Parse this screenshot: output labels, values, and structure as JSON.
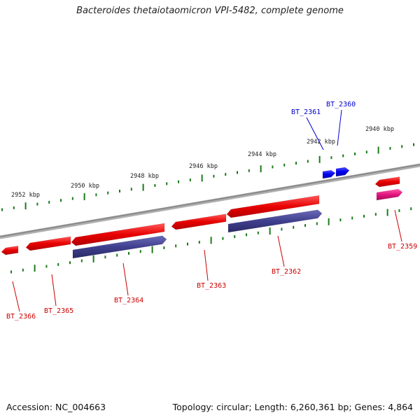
{
  "title": "Bacteroides thetaiotaomicron VPI-5482, complete genome",
  "footer": {
    "accession": "Accession: NC_004663",
    "summary": "Topology: circular; Length: 6,260,361 bp; Genes: 4,864"
  },
  "colors": {
    "backbone": "#8a8a8a",
    "ticks": "#1a7a1a",
    "gene_red": "#ee0000",
    "gene_blue": "#0000ee",
    "gene_purple": "#4a4a9c",
    "gene_pink": "#e2157f",
    "label_red": "#cc0000",
    "label_blue": "#0000cc"
  },
  "scale_labels": [
    "2952 kbp",
    "2950 kbp",
    "2948 kbp",
    "2946 kbp",
    "2944 kbp",
    "2942 kbp",
    "2940 kbp"
  ],
  "gene_labels": [
    {
      "name": "BT_2366",
      "color": "red"
    },
    {
      "name": "BT_2365",
      "color": "red"
    },
    {
      "name": "BT_2364",
      "color": "red"
    },
    {
      "name": "BT_2363",
      "color": "red"
    },
    {
      "name": "BT_2362",
      "color": "red"
    },
    {
      "name": "BT_2361",
      "color": "blue"
    },
    {
      "name": "BT_2360",
      "color": "blue"
    },
    {
      "name": "BT_2359",
      "color": "red"
    }
  ]
}
